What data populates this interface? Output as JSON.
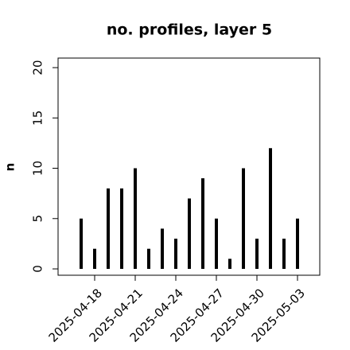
{
  "chart_data": {
    "type": "bar",
    "title": "no. profiles, layer 5",
    "y_label": "n",
    "x": [
      "2025-04-17",
      "2025-04-18",
      "2025-04-19",
      "2025-04-20",
      "2025-04-21",
      "2025-04-22",
      "2025-04-23",
      "2025-04-24",
      "2025-04-25",
      "2025-04-26",
      "2025-04-27",
      "2025-04-28",
      "2025-04-29",
      "2025-04-30",
      "2025-05-01",
      "2025-05-02",
      "2025-05-03"
    ],
    "values": [
      5,
      2,
      8,
      8,
      10,
      2,
      4,
      3,
      7,
      9,
      5,
      1,
      10,
      3,
      12,
      3,
      5
    ],
    "color": "#000000",
    "ylim": [
      -0.63,
      20.95
    ],
    "yticks": [
      0,
      5,
      10,
      15,
      20
    ],
    "xticks": [
      "2025-04-18",
      "2025-04-21",
      {
        "value": "2025-04-24",
        "label": "2025-04-24",
        "color": "#228b22"
      },
      "2025-04-27",
      "2025-04-30",
      "2025-05-03"
    ]
  }
}
